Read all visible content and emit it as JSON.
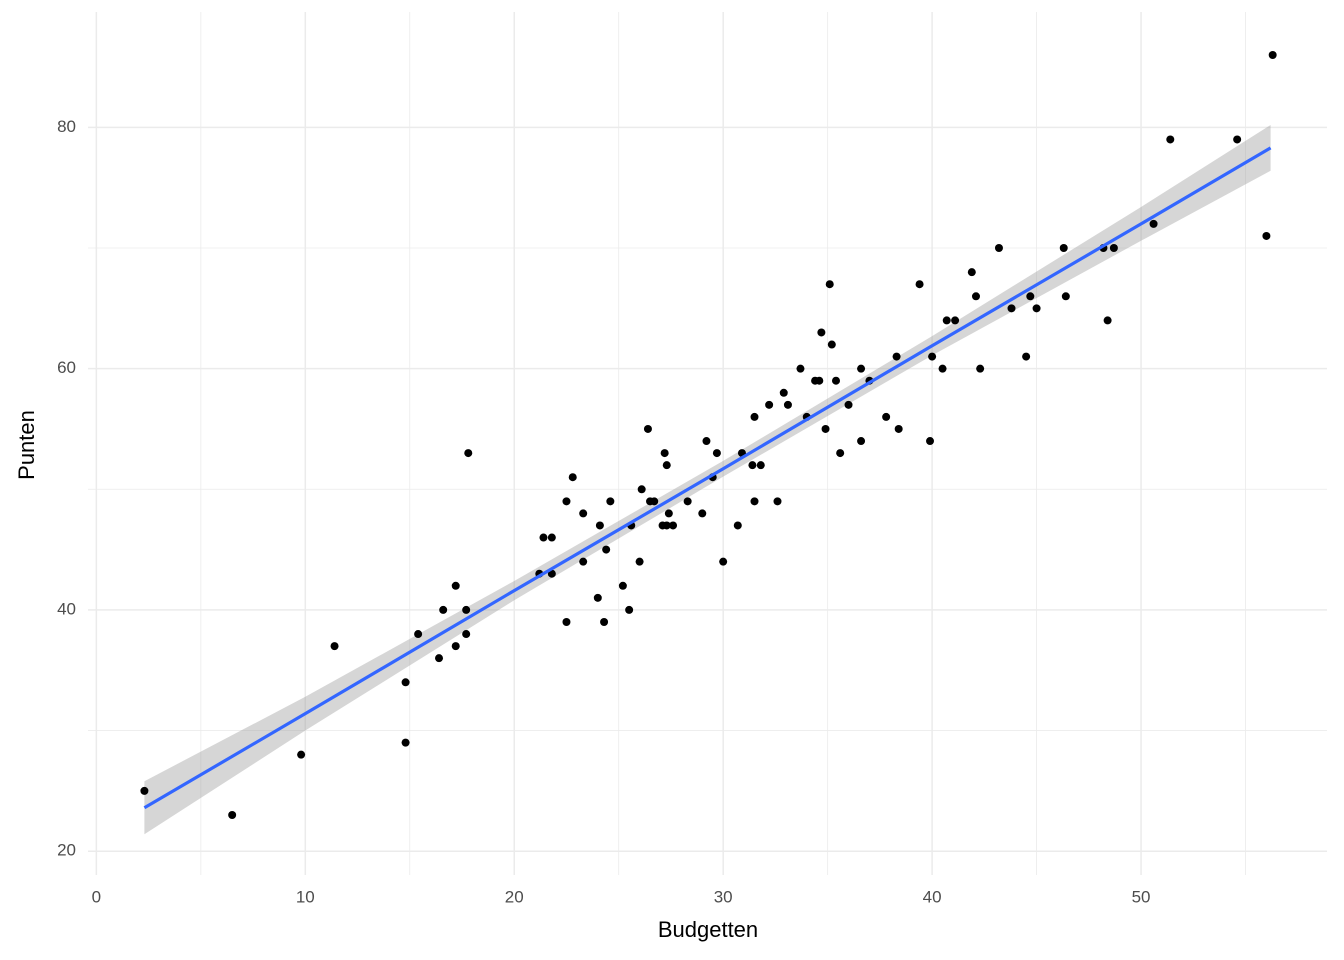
{
  "chart_data": {
    "type": "scatter",
    "x_label": "Budgetten",
    "y_label": "Punten",
    "xlim": [
      -0.4,
      58.9
    ],
    "ylim": [
      19.85,
      89.15
    ],
    "xticks": [
      0,
      10,
      20,
      30,
      40,
      50
    ],
    "yticks": [
      20,
      40,
      60,
      80
    ],
    "xminor": [
      5,
      15,
      25,
      35,
      45,
      55
    ],
    "yminor": [
      30,
      50,
      70
    ],
    "grid": true,
    "point_color": "#000000",
    "x": [
      2.3,
      6.5,
      9.8,
      11.4,
      14.8,
      14.8,
      15.4,
      16.4,
      16.6,
      17.2,
      17.2,
      17.7,
      17.7,
      17.8,
      21.2,
      21.4,
      21.8,
      21.8,
      22.5,
      22.5,
      22.8,
      23.3,
      23.3,
      24.0,
      24.1,
      24.3,
      24.4,
      24.6,
      25.2,
      25.5,
      25.6,
      26.0,
      26.1,
      26.4,
      26.5,
      26.7,
      27.1,
      27.2,
      27.3,
      27.3,
      27.4,
      27.6,
      28.3,
      29.0,
      29.2,
      29.5,
      29.7,
      30.0,
      30.7,
      30.9,
      31.4,
      31.5,
      31.5,
      31.8,
      32.2,
      32.6,
      32.9,
      33.1,
      33.7,
      34.0,
      34.4,
      34.6,
      34.7,
      34.9,
      35.1,
      35.2,
      35.4,
      35.6,
      36.0,
      36.6,
      36.6,
      37.0,
      37.8,
      38.3,
      38.4,
      39.4,
      39.9,
      40.0,
      40.5,
      40.7,
      41.1,
      41.9,
      42.1,
      42.3,
      43.2,
      43.8,
      44.5,
      44.7,
      45.0,
      46.3,
      46.4,
      48.2,
      48.4,
      48.7,
      50.6,
      51.4,
      54.6,
      56.0,
      56.3
    ],
    "values": [
      25,
      23,
      28,
      37,
      34,
      29,
      38,
      36,
      40,
      42,
      37,
      40,
      38,
      53,
      43,
      46,
      46,
      43,
      39,
      49,
      51,
      48,
      44,
      41,
      47,
      39,
      45,
      49,
      42,
      40,
      47,
      44,
      50,
      55,
      49,
      49,
      47,
      53,
      52,
      47,
      48,
      47,
      49,
      48,
      54,
      51,
      53,
      44,
      47,
      53,
      52,
      56,
      49,
      52,
      57,
      49,
      58,
      57,
      60,
      56,
      59,
      59,
      63,
      55,
      67,
      62,
      59,
      53,
      57,
      60,
      54,
      59,
      56,
      61,
      55,
      67,
      54,
      61,
      60,
      64,
      64,
      68,
      66,
      60,
      70,
      65,
      61,
      66,
      65,
      70,
      66,
      70,
      64,
      70,
      72,
      79,
      79,
      71,
      86
    ],
    "fit": {
      "color": "#3366ff",
      "band_color": "#999999",
      "x": [
        2.3,
        10,
        20,
        30,
        40,
        50,
        56.2
      ],
      "values": [
        23.6,
        31.4,
        41.6,
        51.7,
        61.9,
        72.0,
        78.3
      ],
      "lower": [
        21.4,
        30.0,
        40.8,
        51.05,
        61.1,
        70.6,
        76.4
      ],
      "upper": [
        25.8,
        32.8,
        42.4,
        52.35,
        62.7,
        73.4,
        80.2
      ]
    }
  }
}
